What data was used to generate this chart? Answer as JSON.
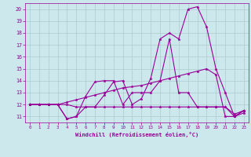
{
  "bg_color": "#cce8ec",
  "grid_color": "#aacccc",
  "line_color": "#990099",
  "xlabel": "Windchill (Refroidissement éolien,°C)",
  "xlim": [
    -0.5,
    23.5
  ],
  "ylim": [
    10.5,
    20.5
  ],
  "yticks": [
    11,
    12,
    13,
    14,
    15,
    16,
    17,
    18,
    19,
    20
  ],
  "xticks": [
    0,
    1,
    2,
    3,
    4,
    5,
    6,
    7,
    8,
    9,
    10,
    11,
    12,
    13,
    14,
    15,
    16,
    17,
    18,
    19,
    20,
    21,
    22,
    23
  ],
  "series": [
    [
      12,
      12,
      12,
      12,
      10.8,
      11.0,
      11.8,
      11.8,
      12.8,
      13.9,
      14.0,
      12.0,
      12.5,
      14.2,
      17.5,
      18.0,
      17.5,
      20.0,
      20.2,
      18.5,
      15.0,
      13.0,
      11.0,
      11.5
    ],
    [
      12,
      12,
      12,
      12,
      10.8,
      11.0,
      12.7,
      13.9,
      14.0,
      14.0,
      12.0,
      13.0,
      13.0,
      13.0,
      14.0,
      17.5,
      13.0,
      13.0,
      11.8,
      11.8,
      11.8,
      11.8,
      11.0,
      11.5
    ],
    [
      12,
      12,
      12,
      12,
      12.2,
      12.4,
      12.6,
      12.8,
      13.0,
      13.2,
      13.4,
      13.5,
      13.6,
      13.8,
      14.0,
      14.2,
      14.4,
      14.6,
      14.8,
      15.0,
      14.5,
      11.0,
      11.0,
      11.3
    ],
    [
      12,
      12,
      12,
      12,
      12.0,
      11.8,
      11.8,
      11.8,
      11.8,
      11.8,
      11.8,
      11.8,
      11.8,
      11.8,
      11.8,
      11.8,
      11.8,
      11.8,
      11.8,
      11.8,
      11.8,
      11.8,
      11.2,
      11.5
    ]
  ]
}
